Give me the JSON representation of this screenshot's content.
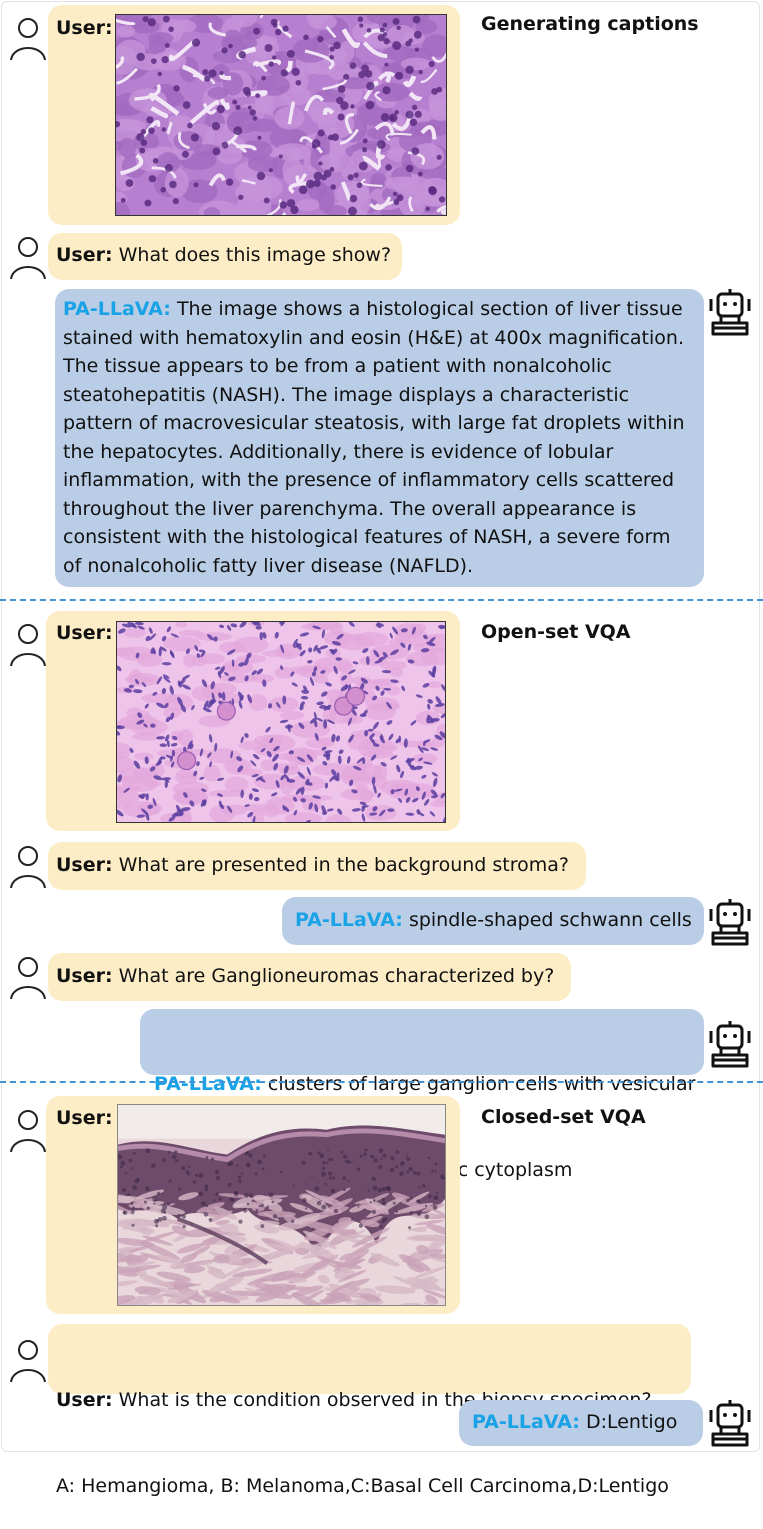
{
  "sections": [
    {
      "title": "Generating captions",
      "user_label": "User:",
      "image_icon": "histology-liver-he-image",
      "question_speaker": "User:",
      "question": "What does this image show?",
      "answer_speaker": "PA-LLaVA:",
      "answer_lines": [
        "The image shows a histological section of liver tissue",
        "stained with hematoxylin and eosin (H&E) at 400x magnification.",
        "The tissue appears to be from a patient with nonalcoholic",
        "steatohepatitis (NASH). The image displays a characteristic",
        "pattern of macrovesicular steatosis, with large fat droplets within",
        "the hepatocytes. Additionally, there is evidence of lobular",
        "inflammation, with the presence of inflammatory cells scattered",
        "throughout the liver parenchyma. The overall appearance is",
        "consistent with the histological features of NASH, a severe form",
        "of nonalcoholic fatty liver disease (NAFLD)."
      ]
    },
    {
      "title": "Open-set VQA",
      "user_label": "User:",
      "image_icon": "histology-ganglioneuroma-image",
      "qa": [
        {
          "question_speaker": "User:",
          "question": "What are presented in the background stroma?",
          "answer_speaker": "PA-LLaVA:",
          "answer_lines": [
            "spindle-shaped schwann cells"
          ]
        },
        {
          "question_speaker": "User:",
          "question": "What are Ganglioneuromas characterized by?",
          "answer_speaker": "PA-LLaVA:",
          "answer_lines": [
            " clusters of large ganglion cells with vesicular",
            "nuclei and abundant eosinophilic cytoplasm"
          ]
        }
      ]
    },
    {
      "title": "Closed-set VQA",
      "user_label": "User:",
      "image_icon": "histology-skin-biopsy-image",
      "question_speaker": "User:",
      "question_lines": [
        " What is the condition observed in the biopsy specimen?",
        "A: Hemangioma, B: Melanoma,C:Basal Cell Carcinoma,D:Lentigo"
      ],
      "answer_speaker": "PA-LLaVA:",
      "answer": "D:Lentigo"
    }
  ],
  "colors": {
    "user_bubble": "#fdedc6",
    "bot_bubble": "#b9cde6",
    "bot_name": "#1aa2e6",
    "divider": "#3f93d6"
  }
}
